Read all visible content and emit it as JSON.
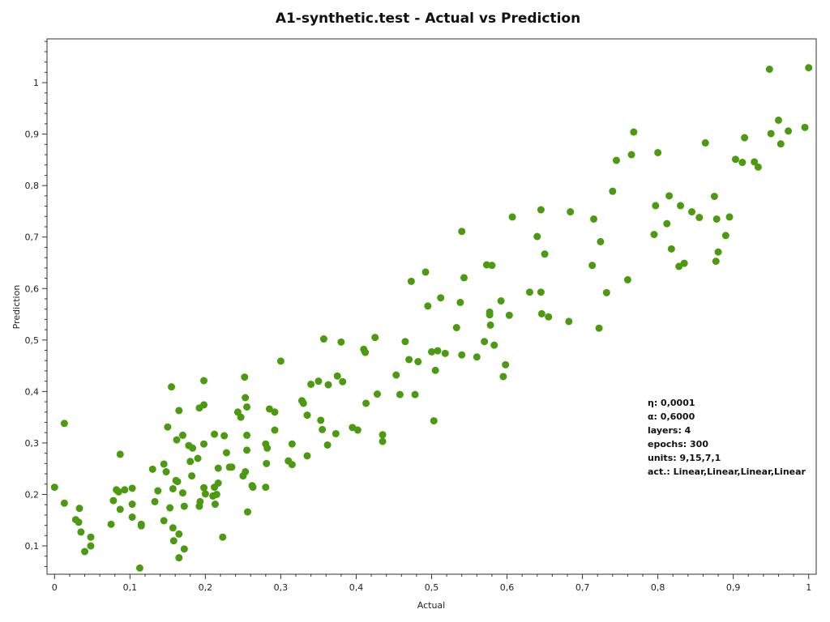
{
  "chart_data": {
    "type": "scatter",
    "title": "A1-synthetic.test - Actual vs Prediction",
    "xlabel": "Actual",
    "ylabel": "Prediction",
    "xlim": [
      -0.01,
      1.01
    ],
    "ylim": [
      0.045,
      1.085
    ],
    "xticks": [
      0,
      0.1,
      0.2,
      0.3,
      0.4,
      0.5,
      0.6,
      0.7,
      0.8,
      0.9,
      1
    ],
    "xtick_labels": [
      "0",
      "0,1",
      "0,2",
      "0,3",
      "0,4",
      "0,5",
      "0,6",
      "0,7",
      "0,8",
      "0,9",
      "1"
    ],
    "yticks": [
      0.1,
      0.2,
      0.3,
      0.4,
      0.5,
      0.6,
      0.7,
      0.8,
      0.9,
      1
    ],
    "ytick_labels": [
      "0,1",
      "0,2",
      "0,3",
      "0,4",
      "0,5",
      "0,6",
      "0,7",
      "0,8",
      "0,9",
      "1"
    ],
    "grid": false,
    "marker_color": "#4c9a10",
    "annotations": [
      "η: 0,0001",
      "α: 0,6000",
      "layers: 4",
      "epochs: 300",
      "units: 9,15,7,1",
      "act.: Linear,Linear,Linear,Linear"
    ],
    "points": [
      [
        0.0,
        0.214
      ],
      [
        0.013,
        0.338
      ],
      [
        0.013,
        0.183
      ],
      [
        0.028,
        0.151
      ],
      [
        0.032,
        0.146
      ],
      [
        0.033,
        0.173
      ],
      [
        0.035,
        0.127
      ],
      [
        0.04,
        0.089
      ],
      [
        0.048,
        0.117
      ],
      [
        0.048,
        0.1
      ],
      [
        0.075,
        0.142
      ],
      [
        0.078,
        0.188
      ],
      [
        0.082,
        0.209
      ],
      [
        0.085,
        0.205
      ],
      [
        0.087,
        0.171
      ],
      [
        0.087,
        0.278
      ],
      [
        0.093,
        0.209
      ],
      [
        0.103,
        0.212
      ],
      [
        0.103,
        0.181
      ],
      [
        0.103,
        0.156
      ],
      [
        0.113,
        0.057
      ],
      [
        0.115,
        0.142
      ],
      [
        0.115,
        0.139
      ],
      [
        0.13,
        0.249
      ],
      [
        0.133,
        0.186
      ],
      [
        0.137,
        0.207
      ],
      [
        0.145,
        0.259
      ],
      [
        0.145,
        0.149
      ],
      [
        0.148,
        0.244
      ],
      [
        0.15,
        0.331
      ],
      [
        0.153,
        0.174
      ],
      [
        0.155,
        0.409
      ],
      [
        0.157,
        0.135
      ],
      [
        0.157,
        0.211
      ],
      [
        0.158,
        0.11
      ],
      [
        0.161,
        0.227
      ],
      [
        0.162,
        0.306
      ],
      [
        0.163,
        0.225
      ],
      [
        0.165,
        0.123
      ],
      [
        0.165,
        0.077
      ],
      [
        0.165,
        0.363
      ],
      [
        0.17,
        0.203
      ],
      [
        0.17,
        0.315
      ],
      [
        0.172,
        0.094
      ],
      [
        0.172,
        0.177
      ],
      [
        0.178,
        0.295
      ],
      [
        0.18,
        0.264
      ],
      [
        0.182,
        0.236
      ],
      [
        0.183,
        0.29
      ],
      [
        0.19,
        0.27
      ],
      [
        0.192,
        0.177
      ],
      [
        0.192,
        0.368
      ],
      [
        0.193,
        0.186
      ],
      [
        0.198,
        0.213
      ],
      [
        0.198,
        0.421
      ],
      [
        0.198,
        0.298
      ],
      [
        0.198,
        0.374
      ],
      [
        0.2,
        0.201
      ],
      [
        0.21,
        0.197
      ],
      [
        0.212,
        0.317
      ],
      [
        0.212,
        0.214
      ],
      [
        0.213,
        0.181
      ],
      [
        0.215,
        0.2
      ],
      [
        0.217,
        0.222
      ],
      [
        0.217,
        0.251
      ],
      [
        0.223,
        0.117
      ],
      [
        0.225,
        0.314
      ],
      [
        0.228,
        0.281
      ],
      [
        0.232,
        0.253
      ],
      [
        0.235,
        0.253
      ],
      [
        0.243,
        0.36
      ],
      [
        0.247,
        0.35
      ],
      [
        0.25,
        0.236
      ],
      [
        0.252,
        0.428
      ],
      [
        0.253,
        0.388
      ],
      [
        0.253,
        0.244
      ],
      [
        0.255,
        0.37
      ],
      [
        0.255,
        0.315
      ],
      [
        0.255,
        0.286
      ],
      [
        0.256,
        0.166
      ],
      [
        0.262,
        0.217
      ],
      [
        0.263,
        0.214
      ],
      [
        0.28,
        0.298
      ],
      [
        0.28,
        0.214
      ],
      [
        0.281,
        0.26
      ],
      [
        0.282,
        0.29
      ],
      [
        0.285,
        0.366
      ],
      [
        0.292,
        0.36
      ],
      [
        0.292,
        0.325
      ],
      [
        0.3,
        0.459
      ],
      [
        0.31,
        0.265
      ],
      [
        0.315,
        0.258
      ],
      [
        0.315,
        0.298
      ],
      [
        0.328,
        0.382
      ],
      [
        0.33,
        0.377
      ],
      [
        0.335,
        0.275
      ],
      [
        0.335,
        0.354
      ],
      [
        0.34,
        0.414
      ],
      [
        0.35,
        0.42
      ],
      [
        0.353,
        0.344
      ],
      [
        0.355,
        0.326
      ],
      [
        0.357,
        0.502
      ],
      [
        0.362,
        0.296
      ],
      [
        0.363,
        0.413
      ],
      [
        0.373,
        0.318
      ],
      [
        0.375,
        0.43
      ],
      [
        0.38,
        0.496
      ],
      [
        0.382,
        0.419
      ],
      [
        0.395,
        0.33
      ],
      [
        0.402,
        0.325
      ],
      [
        0.41,
        0.482
      ],
      [
        0.412,
        0.476
      ],
      [
        0.413,
        0.377
      ],
      [
        0.425,
        0.505
      ],
      [
        0.428,
        0.395
      ],
      [
        0.435,
        0.316
      ],
      [
        0.435,
        0.303
      ],
      [
        0.453,
        0.432
      ],
      [
        0.458,
        0.394
      ],
      [
        0.465,
        0.497
      ],
      [
        0.47,
        0.462
      ],
      [
        0.473,
        0.614
      ],
      [
        0.478,
        0.394
      ],
      [
        0.482,
        0.458
      ],
      [
        0.492,
        0.632
      ],
      [
        0.495,
        0.566
      ],
      [
        0.5,
        0.477
      ],
      [
        0.503,
        0.343
      ],
      [
        0.505,
        0.441
      ],
      [
        0.508,
        0.479
      ],
      [
        0.512,
        0.582
      ],
      [
        0.518,
        0.474
      ],
      [
        0.533,
        0.524
      ],
      [
        0.538,
        0.573
      ],
      [
        0.54,
        0.471
      ],
      [
        0.54,
        0.711
      ],
      [
        0.543,
        0.621
      ],
      [
        0.56,
        0.467
      ],
      [
        0.57,
        0.497
      ],
      [
        0.573,
        0.646
      ],
      [
        0.577,
        0.554
      ],
      [
        0.577,
        0.549
      ],
      [
        0.578,
        0.529
      ],
      [
        0.58,
        0.645
      ],
      [
        0.583,
        0.49
      ],
      [
        0.592,
        0.576
      ],
      [
        0.595,
        0.429
      ],
      [
        0.598,
        0.452
      ],
      [
        0.603,
        0.548
      ],
      [
        0.607,
        0.739
      ],
      [
        0.63,
        0.593
      ],
      [
        0.64,
        0.701
      ],
      [
        0.645,
        0.753
      ],
      [
        0.645,
        0.593
      ],
      [
        0.646,
        0.551
      ],
      [
        0.65,
        0.667
      ],
      [
        0.655,
        0.545
      ],
      [
        0.682,
        0.536
      ],
      [
        0.684,
        0.749
      ],
      [
        0.713,
        0.645
      ],
      [
        0.715,
        0.735
      ],
      [
        0.722,
        0.523
      ],
      [
        0.724,
        0.691
      ],
      [
        0.732,
        0.592
      ],
      [
        0.74,
        0.789
      ],
      [
        0.745,
        0.849
      ],
      [
        0.76,
        0.617
      ],
      [
        0.765,
        0.86
      ],
      [
        0.768,
        0.904
      ],
      [
        0.795,
        0.705
      ],
      [
        0.797,
        0.761
      ],
      [
        0.8,
        0.864
      ],
      [
        0.812,
        0.726
      ],
      [
        0.815,
        0.78
      ],
      [
        0.818,
        0.677
      ],
      [
        0.828,
        0.643
      ],
      [
        0.83,
        0.761
      ],
      [
        0.835,
        0.649
      ],
      [
        0.845,
        0.749
      ],
      [
        0.855,
        0.738
      ],
      [
        0.863,
        0.883
      ],
      [
        0.875,
        0.779
      ],
      [
        0.877,
        0.653
      ],
      [
        0.878,
        0.735
      ],
      [
        0.88,
        0.671
      ],
      [
        0.89,
        0.703
      ],
      [
        0.895,
        0.739
      ],
      [
        0.903,
        0.851
      ],
      [
        0.912,
        0.845
      ],
      [
        0.915,
        0.893
      ],
      [
        0.928,
        0.846
      ],
      [
        0.933,
        0.836
      ],
      [
        0.948,
        1.026
      ],
      [
        0.95,
        0.901
      ],
      [
        0.96,
        0.927
      ],
      [
        0.963,
        0.881
      ],
      [
        0.973,
        0.906
      ],
      [
        0.995,
        0.913
      ],
      [
        1.0,
        1.029
      ]
    ]
  }
}
